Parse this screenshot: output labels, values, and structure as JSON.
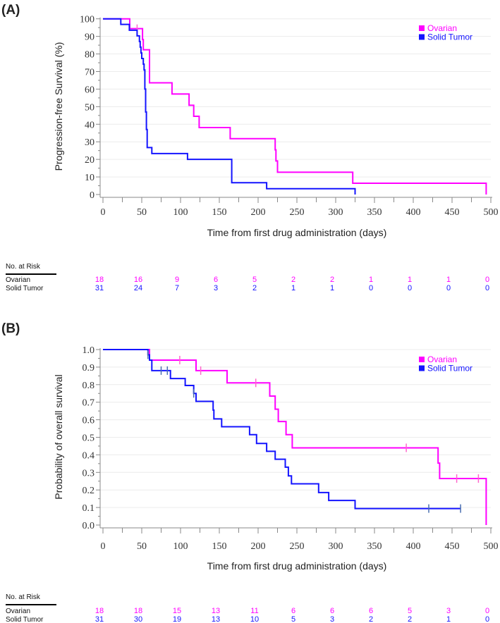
{
  "colors": {
    "ovarian": "#ff00ff",
    "solid": "#1414ff",
    "ovarian_censor": "#ff66cc",
    "solid_censor": "#4a6fb0"
  },
  "chart_data": [
    {
      "panel": "(A)",
      "type": "line",
      "subtype": "kaplan-meier step",
      "xlabel": "Time from first drug administration (days)",
      "ylabel": "Progression-free Survival (%)",
      "xlim": [
        0,
        500
      ],
      "ylim": [
        0,
        100
      ],
      "xticks": [
        "0",
        "50",
        "100",
        "150",
        "200",
        "250",
        "300",
        "350",
        "400",
        "450",
        "500"
      ],
      "xtick_values": [
        0,
        50,
        100,
        150,
        200,
        250,
        300,
        350,
        400,
        450,
        500
      ],
      "yticks": [
        "0",
        "10",
        "20",
        "30",
        "40",
        "50",
        "60",
        "70",
        "80",
        "90",
        "100"
      ],
      "ytick_values": [
        0,
        10,
        20,
        30,
        40,
        50,
        60,
        70,
        80,
        90,
        100
      ],
      "grid": true,
      "legend_placement": "top-right",
      "series": [
        {
          "name": "Ovarian",
          "color_key": "ovarian",
          "points": [
            [
              0,
              100
            ],
            [
              34.5,
              94.4
            ],
            [
              51,
              88.2
            ],
            [
              52,
              82.4
            ],
            [
              60,
              63.6
            ],
            [
              89,
              57.2
            ],
            [
              111,
              50.8
            ],
            [
              117,
              44.5
            ],
            [
              124,
              38.1
            ],
            [
              164,
              31.8
            ],
            [
              222,
              25.4
            ],
            [
              223,
              19.1
            ],
            [
              225,
              12.7
            ],
            [
              322,
              6.4
            ],
            [
              494,
              0
            ]
          ],
          "censored": [
            [
              44,
              94.4
            ]
          ]
        },
        {
          "name": "Solid Tumor",
          "color_key": "solid",
          "points": [
            [
              0,
              100
            ],
            [
              23,
              96.8
            ],
            [
              34,
              93.5
            ],
            [
              44,
              90.3
            ],
            [
              47,
              87.1
            ],
            [
              48,
              83.9
            ],
            [
              49,
              80.6
            ],
            [
              50,
              77.4
            ],
            [
              52,
              74.2
            ],
            [
              53,
              70.9
            ],
            [
              54,
              60
            ],
            [
              55,
              47
            ],
            [
              56,
              37
            ],
            [
              57,
              26.7
            ],
            [
              63,
              23.3
            ],
            [
              109,
              20
            ],
            [
              166,
              6.7
            ],
            [
              211,
              3.3
            ],
            [
              325,
              0
            ]
          ],
          "censored": []
        }
      ],
      "at_risk": {
        "title": "No. at Risk",
        "rows": [
          {
            "label": "Ovarian",
            "color_key": "ovarian",
            "values": [
              "18",
              "16",
              "9",
              "6",
              "5",
              "2",
              "2",
              "1",
              "1",
              "1",
              "0"
            ]
          },
          {
            "label": "Solid Tumor",
            "color_key": "solid",
            "values": [
              "31",
              "24",
              "7",
              "3",
              "2",
              "1",
              "1",
              "0",
              "0",
              "0",
              "0"
            ]
          }
        ]
      }
    },
    {
      "panel": "(B)",
      "type": "line",
      "subtype": "kaplan-meier step",
      "xlabel": "Time from first drug administration (days)",
      "ylabel": "Probability of overall survival",
      "xlim": [
        0,
        500
      ],
      "ylim": [
        0,
        1
      ],
      "xticks": [
        "0",
        "50",
        "100",
        "150",
        "200",
        "250",
        "300",
        "350",
        "400",
        "450",
        "500"
      ],
      "xtick_values": [
        0,
        50,
        100,
        150,
        200,
        250,
        300,
        350,
        400,
        450,
        500
      ],
      "yticks": [
        "0.0",
        "0.1",
        "0.2",
        "0.3",
        "0.4",
        "0.5",
        "0.6",
        "0.7",
        "0.8",
        "0.9",
        "1.0"
      ],
      "ytick_values": [
        0,
        0.1,
        0.2,
        0.3,
        0.4,
        0.5,
        0.6,
        0.7,
        0.8,
        0.9,
        1.0
      ],
      "grid": true,
      "legend_placement": "top-right",
      "series": [
        {
          "name": "Ovarian",
          "color_key": "ovarian",
          "points": [
            [
              0,
              1
            ],
            [
              60,
              0.94
            ],
            [
              120,
              0.88
            ],
            [
              160,
              0.81
            ],
            [
              215,
              0.735
            ],
            [
              222,
              0.66
            ],
            [
              226,
              0.59
            ],
            [
              236,
              0.515
            ],
            [
              244,
              0.44
            ],
            [
              432,
              0.353
            ],
            [
              434,
              0.265
            ],
            [
              494,
              0
            ]
          ],
          "censored": [
            [
              99,
              0.94
            ],
            [
              126,
              0.88
            ],
            [
              197,
              0.81
            ],
            [
              391,
              0.44
            ],
            [
              456,
              0.265
            ],
            [
              484,
              0.265
            ]
          ]
        },
        {
          "name": "Solid Tumor",
          "color_key": "solid",
          "points": [
            [
              0,
              1
            ],
            [
              58,
              0.97
            ],
            [
              60,
              0.94
            ],
            [
              63,
              0.88
            ],
            [
              87,
              0.835
            ],
            [
              106,
              0.795
            ],
            [
              117,
              0.75
            ],
            [
              120,
              0.705
            ],
            [
              142,
              0.655
            ],
            [
              143,
              0.605
            ],
            [
              153,
              0.56
            ],
            [
              189,
              0.515
            ],
            [
              198,
              0.465
            ],
            [
              211,
              0.42
            ],
            [
              222,
              0.375
            ],
            [
              235,
              0.33
            ],
            [
              239,
              0.28
            ],
            [
              243,
              0.235
            ],
            [
              278,
              0.185
            ],
            [
              291,
              0.14
            ],
            [
              325,
              0.094
            ],
            [
              461,
              0.094
            ]
          ],
          "censored": [
            [
              58,
              0.97
            ],
            [
              75,
              0.88
            ],
            [
              83,
              0.88
            ],
            [
              117,
              0.75
            ],
            [
              420,
              0.094
            ],
            [
              461,
              0.094
            ]
          ]
        }
      ],
      "at_risk": {
        "title": "No. at Risk",
        "rows": [
          {
            "label": "Ovarian",
            "color_key": "ovarian",
            "values": [
              "18",
              "18",
              "15",
              "13",
              "11",
              "6",
              "6",
              "6",
              "5",
              "3",
              "0"
            ]
          },
          {
            "label": "Solid Tumor",
            "color_key": "solid",
            "values": [
              "31",
              "30",
              "19",
              "13",
              "10",
              "5",
              "3",
              "2",
              "2",
              "1",
              "0"
            ]
          }
        ]
      }
    }
  ]
}
